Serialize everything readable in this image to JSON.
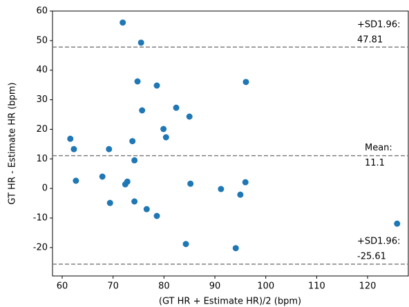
{
  "chart_data": {
    "type": "scatter",
    "x_label": "(GT HR + Estimate HR)/2 (bpm)",
    "y_label": "GT HR - Estimate HR (bpm)",
    "series": [
      {
        "color": "#1f77b4",
        "x": [
          71.9,
          75.5,
          74.8,
          78.6,
          96.1,
          75.7,
          82.4,
          85.0,
          79.9,
          80.4,
          61.6,
          62.3,
          69.2,
          73.8,
          74.2,
          62.7,
          67.9,
          72.8,
          72.4,
          85.2,
          91.2,
          96.0,
          95.0,
          69.4,
          74.2,
          76.6,
          78.6,
          84.3,
          94.1,
          125.8
        ],
        "values": [
          56.1,
          49.3,
          36.2,
          34.8,
          36.0,
          26.4,
          27.3,
          24.3,
          20.1,
          17.3,
          16.8,
          13.3,
          13.3,
          16.0,
          9.5,
          2.6,
          4.0,
          2.3,
          1.4,
          1.6,
          -0.2,
          2.1,
          -2.1,
          -4.9,
          -4.4,
          -7.0,
          -9.3,
          -18.8,
          -20.2,
          -11.9
        ]
      }
    ],
    "hlines": [
      {
        "value": 47.81,
        "color": "#808080",
        "label": [
          "+SD1.96:",
          "47.81"
        ]
      },
      {
        "value": 11.1,
        "color": "#808080",
        "label": [
          "Mean:",
          "11.1"
        ]
      },
      {
        "value": -25.61,
        "color": "#808080",
        "label": [
          "+SD1.96:",
          "-25.61"
        ]
      }
    ],
    "xlim": [
      58.1,
      128.0
    ],
    "ylim": [
      -29.6,
      60
    ],
    "xticks": [
      60,
      70,
      80,
      90,
      100,
      110,
      120
    ],
    "yticks": [
      -20,
      -10,
      0,
      10,
      20,
      30,
      40,
      50,
      60
    ],
    "grid": false
  }
}
